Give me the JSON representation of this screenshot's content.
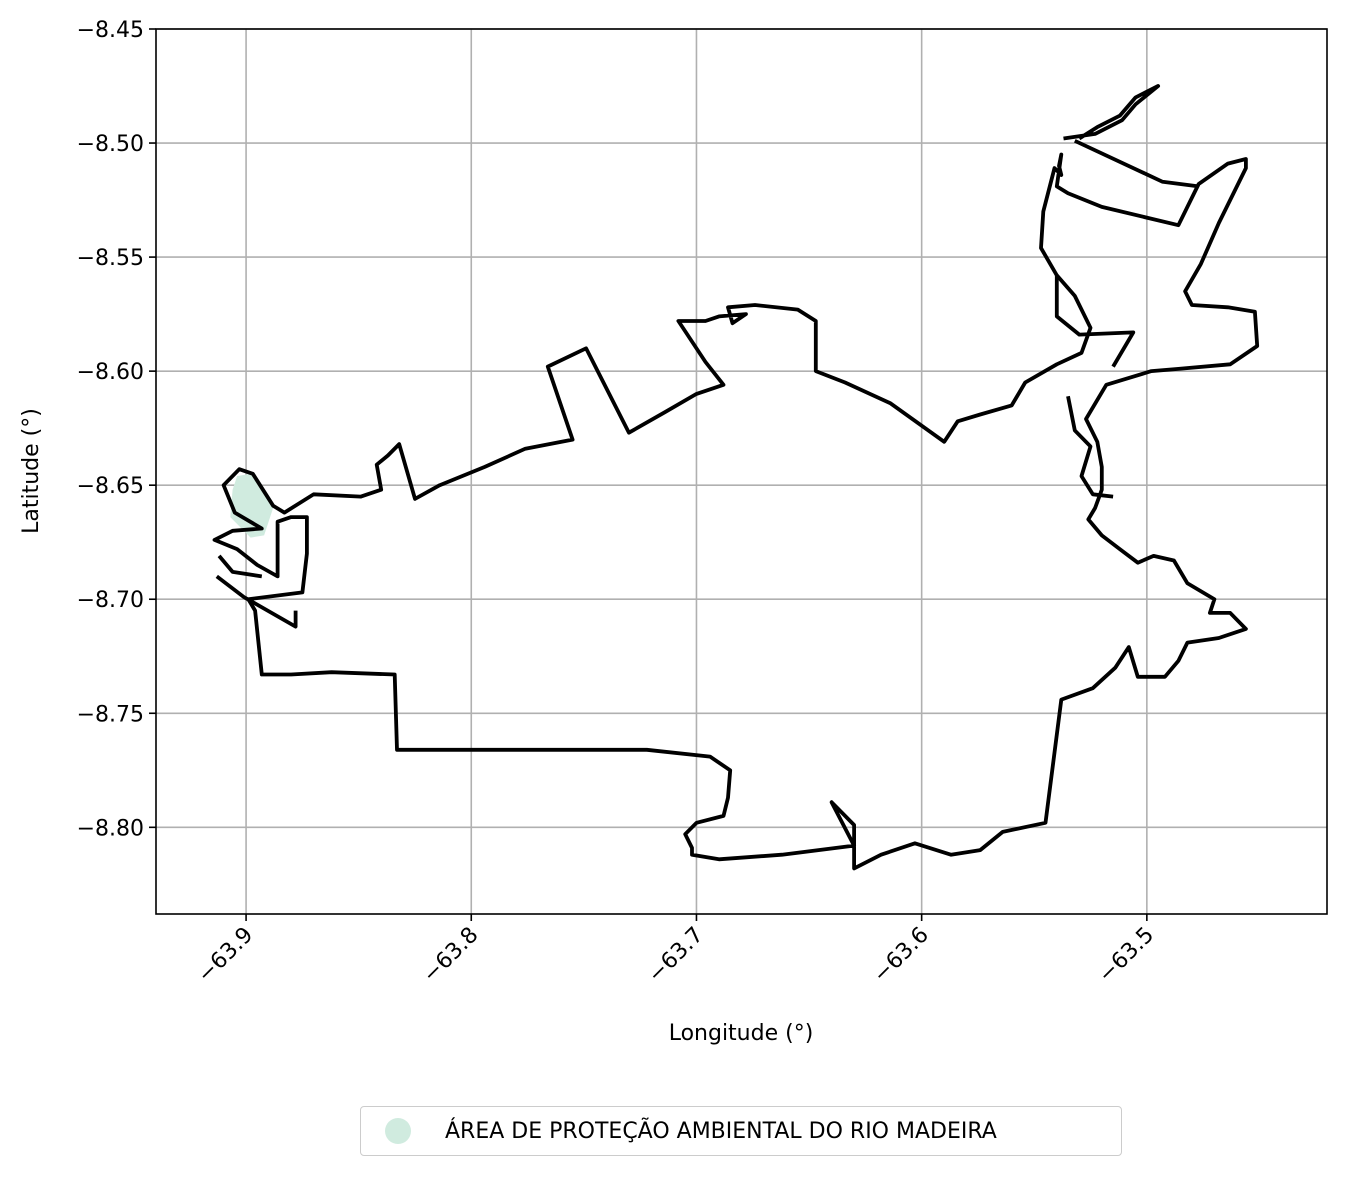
{
  "chart_data": {
    "type": "map",
    "xlabel": "Longitude (°)",
    "ylabel": "Latitude (°)",
    "xlim": [
      -63.94,
      -63.42
    ],
    "ylim": [
      -8.838,
      -8.45
    ],
    "xticks": [
      -63.9,
      -63.8,
      -63.7,
      -63.6,
      -63.5
    ],
    "xtick_labels": [
      "−63.9",
      "−63.8",
      "−63.7",
      "−63.6",
      "−63.5"
    ],
    "yticks": [
      -8.45,
      -8.5,
      -8.55,
      -8.6,
      -8.65,
      -8.7,
      -8.75,
      -8.8
    ],
    "ytick_labels": [
      "−8.45",
      "−8.50",
      "−8.55",
      "−8.60",
      "−8.65",
      "−8.70",
      "−8.75",
      "−8.80"
    ],
    "grid": true,
    "legend_position": "bottom-center",
    "legend": [
      {
        "label": "ÁREA DE PROTEÇÃO AMBIENTAL DO RIO MADEIRA",
        "color": "#d0ebdf"
      }
    ],
    "boundary_color": "#000000",
    "boundary": [
      [
        -63.87,
        -8.654
      ],
      [
        -63.849,
        -8.655
      ],
      [
        -63.84,
        -8.652
      ],
      [
        -63.842,
        -8.641
      ],
      [
        -63.837,
        -8.637
      ],
      [
        -63.832,
        -8.632
      ],
      [
        -63.825,
        -8.656
      ],
      [
        -63.814,
        -8.65
      ],
      [
        -63.794,
        -8.642
      ],
      [
        -63.776,
        -8.634
      ],
      [
        -63.755,
        -8.63
      ],
      [
        -63.766,
        -8.598
      ],
      [
        -63.749,
        -8.59
      ],
      [
        -63.73,
        -8.627
      ],
      [
        -63.714,
        -8.618
      ],
      [
        -63.7,
        -8.61
      ],
      [
        -63.688,
        -8.606
      ],
      [
        -63.696,
        -8.596
      ],
      [
        -63.708,
        -8.578
      ],
      [
        -63.696,
        -8.578
      ],
      [
        -63.69,
        -8.576
      ],
      [
        -63.678,
        -8.575
      ],
      [
        -63.684,
        -8.579
      ],
      [
        -63.686,
        -8.572
      ],
      [
        -63.674,
        -8.571
      ],
      [
        -63.655,
        -8.573
      ],
      [
        -63.647,
        -8.578
      ],
      [
        -63.647,
        -8.6
      ],
      [
        -63.634,
        -8.605
      ],
      [
        -63.614,
        -8.614
      ],
      [
        -63.59,
        -8.631
      ],
      [
        -63.584,
        -8.622
      ],
      [
        -63.574,
        -8.619
      ],
      [
        -63.56,
        -8.615
      ],
      [
        -63.554,
        -8.605
      ],
      [
        -63.54,
        -8.597
      ],
      [
        -63.529,
        -8.592
      ],
      [
        -63.525,
        -8.581
      ],
      [
        -63.532,
        -8.567
      ],
      [
        -63.54,
        -8.558
      ],
      [
        -63.547,
        -8.546
      ],
      [
        -63.546,
        -8.53
      ],
      [
        -63.541,
        -8.511
      ],
      [
        -63.538,
        -8.514
      ],
      [
        -63.539,
        -8.51
      ],
      [
        -63.538,
        -8.505
      ],
      [
        -63.54,
        -8.519
      ],
      [
        -63.535,
        -8.522
      ],
      [
        -63.52,
        -8.528
      ],
      [
        -63.486,
        -8.536
      ],
      [
        -63.477,
        -8.518
      ],
      [
        -63.464,
        -8.509
      ],
      [
        -63.456,
        -8.507
      ],
      [
        -63.456,
        -8.511
      ],
      [
        -63.46,
        -8.519
      ],
      [
        -63.468,
        -8.535
      ],
      [
        -63.476,
        -8.553
      ],
      [
        -63.483,
        -8.565
      ],
      [
        -63.48,
        -8.571
      ],
      [
        -63.464,
        -8.572
      ],
      [
        -63.452,
        -8.574
      ],
      [
        -63.451,
        -8.589
      ],
      [
        -63.463,
        -8.597
      ],
      [
        -63.486,
        -8.599
      ],
      [
        -63.498,
        -8.6
      ],
      [
        -63.518,
        -8.606
      ],
      [
        -63.527,
        -8.621
      ],
      [
        -63.522,
        -8.631
      ],
      [
        -63.52,
        -8.642
      ],
      [
        -63.52,
        -8.652
      ],
      [
        -63.523,
        -8.66
      ],
      [
        -63.526,
        -8.665
      ],
      [
        -63.52,
        -8.672
      ],
      [
        -63.512,
        -8.678
      ],
      [
        -63.504,
        -8.684
      ],
      [
        -63.497,
        -8.681
      ],
      [
        -63.488,
        -8.683
      ],
      [
        -63.482,
        -8.693
      ],
      [
        -63.47,
        -8.7
      ],
      [
        -63.472,
        -8.706
      ],
      [
        -63.463,
        -8.706
      ],
      [
        -63.456,
        -8.713
      ],
      [
        -63.468,
        -8.717
      ],
      [
        -63.482,
        -8.719
      ],
      [
        -63.486,
        -8.727
      ],
      [
        -63.492,
        -8.734
      ],
      [
        -63.504,
        -8.734
      ],
      [
        -63.508,
        -8.721
      ],
      [
        -63.514,
        -8.73
      ],
      [
        -63.524,
        -8.739
      ],
      [
        -63.538,
        -8.744
      ],
      [
        -63.545,
        -8.798
      ],
      [
        -63.564,
        -8.802
      ],
      [
        -63.574,
        -8.81
      ],
      [
        -63.587,
        -8.812
      ],
      [
        -63.603,
        -8.807
      ],
      [
        -63.618,
        -8.812
      ],
      [
        -63.63,
        -8.818
      ],
      [
        -63.63,
        -8.799
      ],
      [
        -63.64,
        -8.789
      ],
      [
        -63.63,
        -8.808
      ],
      [
        -63.662,
        -8.812
      ],
      [
        -63.69,
        -8.814
      ],
      [
        -63.702,
        -8.812
      ],
      [
        -63.702,
        -8.809
      ],
      [
        -63.705,
        -8.803
      ],
      [
        -63.7,
        -8.798
      ],
      [
        -63.688,
        -8.795
      ],
      [
        -63.686,
        -8.787
      ],
      [
        -63.685,
        -8.775
      ],
      [
        -63.694,
        -8.769
      ],
      [
        -63.722,
        -8.766
      ],
      [
        -63.76,
        -8.766
      ],
      [
        -63.796,
        -8.766
      ],
      [
        -63.833,
        -8.766
      ],
      [
        -63.834,
        -8.733
      ],
      [
        -63.862,
        -8.732
      ],
      [
        -63.88,
        -8.733
      ],
      [
        -63.893,
        -8.733
      ],
      [
        -63.896,
        -8.705
      ],
      [
        -63.899,
        -8.7
      ],
      [
        -63.875,
        -8.697
      ],
      [
        -63.873,
        -8.68
      ],
      [
        -63.873,
        -8.664
      ],
      [
        -63.88,
        -8.664
      ],
      [
        -63.886,
        -8.666
      ],
      [
        -63.886,
        -8.69
      ],
      [
        -63.895,
        -8.685
      ],
      [
        -63.904,
        -8.678
      ],
      [
        -63.914,
        -8.674
      ],
      [
        -63.906,
        -8.67
      ],
      [
        -63.893,
        -8.669
      ],
      [
        -63.905,
        -8.662
      ],
      [
        -63.91,
        -8.65
      ],
      [
        -63.903,
        -8.643
      ],
      [
        -63.897,
        -8.645
      ],
      [
        -63.888,
        -8.659
      ],
      [
        -63.883,
        -8.662
      ],
      [
        -63.87,
        -8.654
      ]
    ],
    "apa_area": [
      [
        -63.904,
        -8.646
      ],
      [
        -63.898,
        -8.645
      ],
      [
        -63.888,
        -8.66
      ],
      [
        -63.892,
        -8.672
      ],
      [
        -63.898,
        -8.673
      ],
      [
        -63.907,
        -8.664
      ],
      [
        -63.906,
        -8.652
      ]
    ],
    "inner_lines": [
      [
        [
          -63.913,
          -8.69
        ],
        [
          -63.901,
          -8.699
        ],
        [
          -63.878,
          -8.712
        ],
        [
          -63.878,
          -8.705
        ]
      ],
      [
        [
          -63.912,
          -8.681
        ],
        [
          -63.906,
          -8.688
        ],
        [
          -63.893,
          -8.69
        ]
      ],
      [
        [
          -63.537,
          -8.498
        ],
        [
          -63.523,
          -8.496
        ],
        [
          -63.511,
          -8.49
        ],
        [
          -63.505,
          -8.483
        ],
        [
          -63.495,
          -8.475
        ],
        [
          -63.505,
          -8.48
        ],
        [
          -63.512,
          -8.488
        ],
        [
          -63.522,
          -8.493
        ],
        [
          -63.53,
          -8.498
        ]
      ],
      [
        [
          -63.532,
          -8.499
        ],
        [
          -63.493,
          -8.517
        ],
        [
          -63.477,
          -8.519
        ]
      ],
      [
        [
          -63.54,
          -8.558
        ],
        [
          -63.54,
          -8.576
        ],
        [
          -63.53,
          -8.584
        ],
        [
          -63.506,
          -8.583
        ],
        [
          -63.515,
          -8.598
        ]
      ],
      [
        [
          -63.535,
          -8.611
        ],
        [
          -63.532,
          -8.626
        ],
        [
          -63.525,
          -8.633
        ],
        [
          -63.529,
          -8.646
        ],
        [
          -63.524,
          -8.654
        ],
        [
          -63.515,
          -8.655
        ]
      ]
    ]
  }
}
